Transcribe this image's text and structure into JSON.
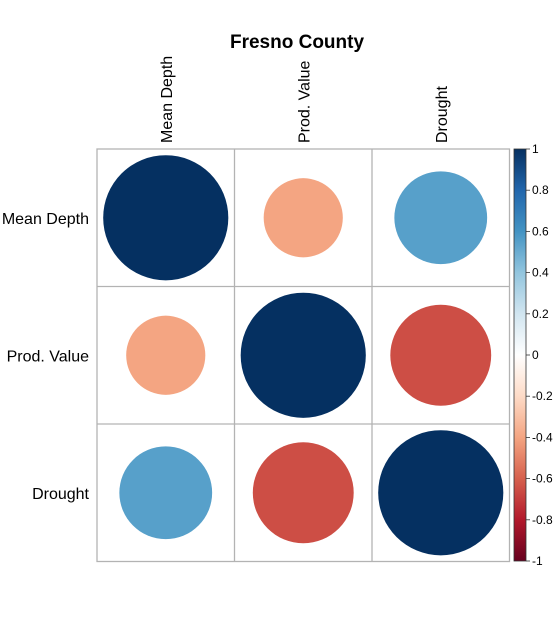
{
  "chart_data": {
    "type": "heatmap",
    "subtype": "correlation-circles",
    "title": "Fresno County",
    "variables": [
      "Mean Depth",
      "Prod. Value",
      "Drought"
    ],
    "matrix": [
      [
        1.0,
        -0.4,
        0.55
      ],
      [
        -0.4,
        1.0,
        -0.65
      ],
      [
        0.55,
        -0.65,
        1.0
      ]
    ],
    "colorbar": {
      "range": [
        -1,
        1
      ],
      "ticks": [
        "1",
        "0.8",
        "0.6",
        "0.4",
        "0.2",
        "0",
        "-0.2",
        "-0.4",
        "-0.6",
        "-0.8",
        "-1"
      ],
      "colors": [
        "#67001f",
        "#b2182b",
        "#d6604d",
        "#f4a582",
        "#fddbc7",
        "#ffffff",
        "#d1e5f0",
        "#92c5de",
        "#4393c3",
        "#2166ac",
        "#053061"
      ]
    },
    "grid": true,
    "legend": "right"
  }
}
